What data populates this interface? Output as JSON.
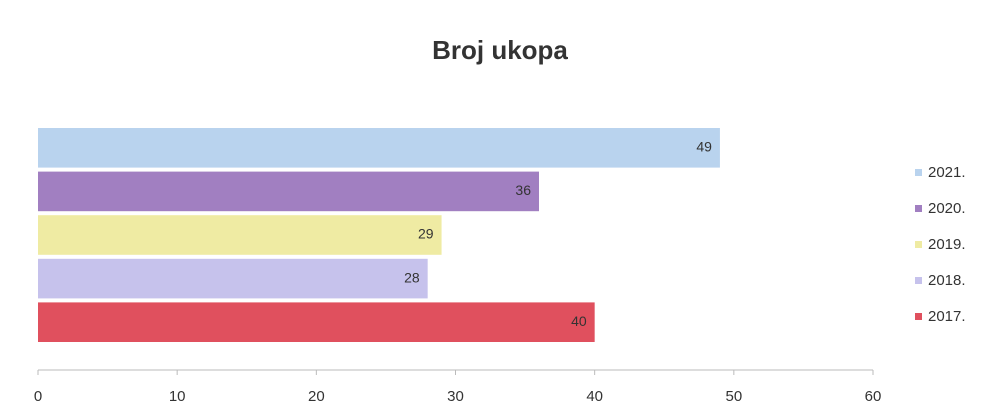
{
  "chart_data": {
    "type": "bar",
    "orientation": "horizontal",
    "title": "Broj ukopa",
    "series": [
      {
        "name": "2021.",
        "color": "#b9d3ee",
        "values": [
          49
        ]
      },
      {
        "name": "2020.",
        "color": "#a17fc1",
        "values": [
          36
        ]
      },
      {
        "name": "2019.",
        "color": "#efeba3",
        "values": [
          29
        ]
      },
      {
        "name": "2018.",
        "color": "#c6c2ec",
        "values": [
          28
        ]
      },
      {
        "name": "2017.",
        "color": "#e0505e",
        "values": [
          40
        ]
      }
    ],
    "xlim": [
      0,
      60
    ],
    "xticks": [
      0,
      10,
      20,
      30,
      40,
      50,
      60
    ],
    "legend": "right"
  }
}
